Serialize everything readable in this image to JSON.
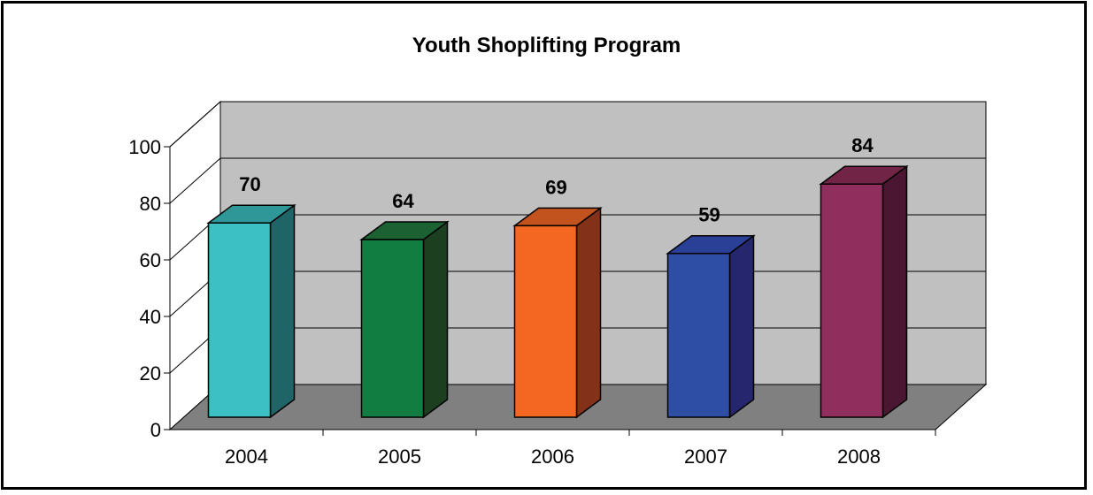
{
  "chart_data": {
    "type": "bar",
    "title": "Youth Shoplifting Program",
    "xlabel": "",
    "ylabel": "",
    "categories": [
      "2004",
      "2005",
      "2006",
      "2007",
      "2008"
    ],
    "values": [
      70,
      64,
      69,
      59,
      84
    ],
    "data_labels": [
      "70",
      "64",
      "69",
      "59",
      "84"
    ],
    "y_ticks": [
      "0",
      "20",
      "40",
      "60",
      "80",
      "100"
    ],
    "ylim": [
      0,
      100
    ],
    "grid": true,
    "legend": "none",
    "style": "3d-column",
    "colors": {
      "bars": [
        "#3cc0c3",
        "#127d40",
        "#f46722",
        "#2e4ea5",
        "#902f5d"
      ],
      "bar_sides": [
        "#1f6568",
        "#1b3f1f",
        "#833219",
        "#26266e",
        "#4b1631"
      ],
      "bar_tops": [
        "#2f9798",
        "#1c6132",
        "#c2531e",
        "#2a3f96",
        "#712446"
      ],
      "back_wall": "#c0c0c0",
      "floor": "#808080",
      "gridline": "#000000",
      "border": "#000000"
    }
  }
}
